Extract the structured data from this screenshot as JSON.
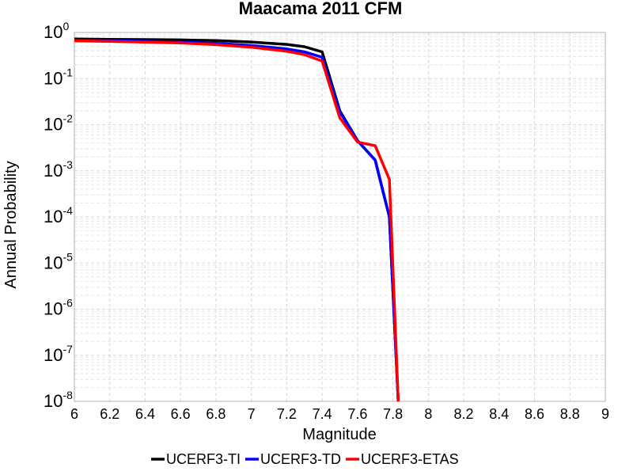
{
  "chart_data": {
    "type": "line",
    "title": "Maacama 2011 CFM",
    "xlabel": "Magnitude",
    "ylabel": "Annual Probability",
    "xlim": [
      6,
      9
    ],
    "ylim": [
      1e-08,
      1
    ],
    "yscale": "log",
    "grid": true,
    "legend_position": "bottom",
    "x_ticks": [
      "6",
      "6.2",
      "6.4",
      "6.6",
      "6.8",
      "7",
      "7.2",
      "7.4",
      "7.6",
      "7.8",
      "8",
      "8.2",
      "8.4",
      "8.6",
      "8.8",
      "9"
    ],
    "y_ticks": [
      {
        "base": "10",
        "exp": "0"
      },
      {
        "base": "10",
        "exp": "-1"
      },
      {
        "base": "10",
        "exp": "-2"
      },
      {
        "base": "10",
        "exp": "-3"
      },
      {
        "base": "10",
        "exp": "-4"
      },
      {
        "base": "10",
        "exp": "-5"
      },
      {
        "base": "10",
        "exp": "-6"
      },
      {
        "base": "10",
        "exp": "-7"
      },
      {
        "base": "10",
        "exp": "-8"
      }
    ],
    "series": [
      {
        "name": "UCERF3-TI",
        "color": "#000000",
        "points": [
          [
            6.0,
            0.72
          ],
          [
            6.2,
            0.71
          ],
          [
            6.4,
            0.7
          ],
          [
            6.6,
            0.69
          ],
          [
            6.8,
            0.665
          ],
          [
            7.0,
            0.62
          ],
          [
            7.2,
            0.55
          ],
          [
            7.3,
            0.49
          ],
          [
            7.4,
            0.38
          ],
          [
            7.5,
            0.02
          ],
          [
            7.6,
            0.0045
          ],
          [
            7.7,
            0.0017
          ],
          [
            7.78,
            0.0001
          ],
          [
            7.83,
            1e-08
          ]
        ]
      },
      {
        "name": "UCERF3-TD",
        "color": "#0000ff",
        "points": [
          [
            6.0,
            0.68
          ],
          [
            6.2,
            0.665
          ],
          [
            6.4,
            0.645
          ],
          [
            6.6,
            0.62
          ],
          [
            6.8,
            0.58
          ],
          [
            7.0,
            0.52
          ],
          [
            7.2,
            0.44
          ],
          [
            7.3,
            0.38
          ],
          [
            7.4,
            0.29
          ],
          [
            7.5,
            0.019
          ],
          [
            7.6,
            0.0045
          ],
          [
            7.7,
            0.0017
          ],
          [
            7.78,
            0.0001
          ],
          [
            7.83,
            1e-08
          ]
        ]
      },
      {
        "name": "UCERF3-ETAS",
        "color": "#ff0000",
        "points": [
          [
            6.0,
            0.66
          ],
          [
            6.2,
            0.64
          ],
          [
            6.4,
            0.615
          ],
          [
            6.6,
            0.59
          ],
          [
            6.8,
            0.545
          ],
          [
            7.0,
            0.48
          ],
          [
            7.2,
            0.39
          ],
          [
            7.3,
            0.33
          ],
          [
            7.4,
            0.24
          ],
          [
            7.5,
            0.014
          ],
          [
            7.6,
            0.0042
          ],
          [
            7.7,
            0.0035
          ],
          [
            7.78,
            0.00065
          ],
          [
            7.83,
            1e-08
          ]
        ]
      }
    ]
  }
}
